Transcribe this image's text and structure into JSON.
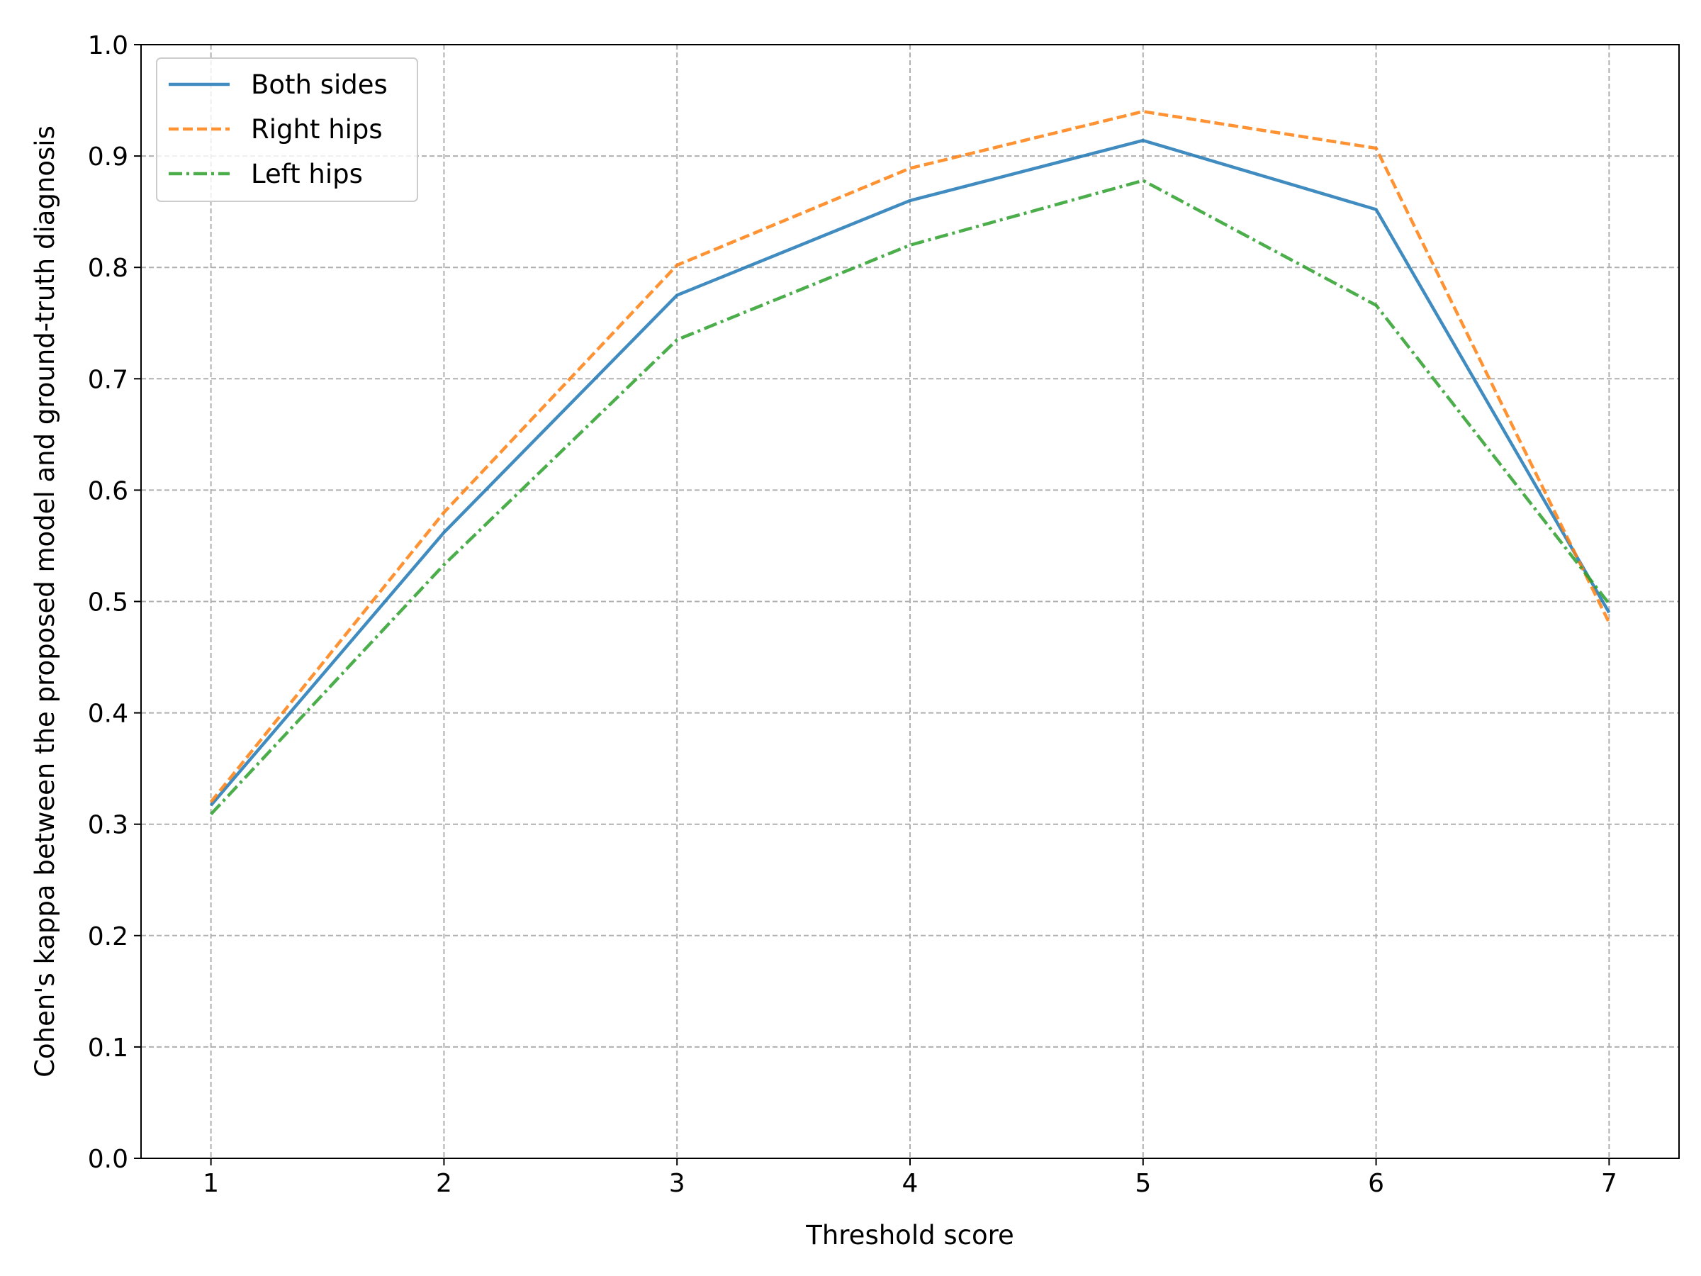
{
  "chart_data": {
    "type": "line",
    "title": "",
    "xlabel": "Threshold score",
    "ylabel": "Cohen's kappa between the proposed model and ground-truth diagnosis",
    "x": [
      1,
      2,
      3,
      4,
      5,
      6,
      7
    ],
    "xlim": [
      0.7,
      7.3
    ],
    "ylim": [
      0.0,
      1.0
    ],
    "xticks": [
      1,
      2,
      3,
      4,
      5,
      6,
      7
    ],
    "yticks": [
      0.0,
      0.1,
      0.2,
      0.3,
      0.4,
      0.5,
      0.6,
      0.7,
      0.8,
      0.9,
      1.0
    ],
    "grid": true,
    "legend_position": "top-left",
    "series": [
      {
        "name": "Both sides",
        "values": [
          0.317,
          0.562,
          0.775,
          0.86,
          0.914,
          0.852,
          0.49
        ],
        "color": "#1f77b4",
        "dash": "solid"
      },
      {
        "name": "Right hips",
        "values": [
          0.32,
          0.58,
          0.802,
          0.889,
          0.94,
          0.907,
          0.481
        ],
        "color": "#ff7f0e",
        "dash": "dashed"
      },
      {
        "name": "Left hips",
        "values": [
          0.309,
          0.533,
          0.735,
          0.82,
          0.878,
          0.766,
          0.498
        ],
        "color": "#2ca02c",
        "dash": "dashdot"
      }
    ]
  }
}
